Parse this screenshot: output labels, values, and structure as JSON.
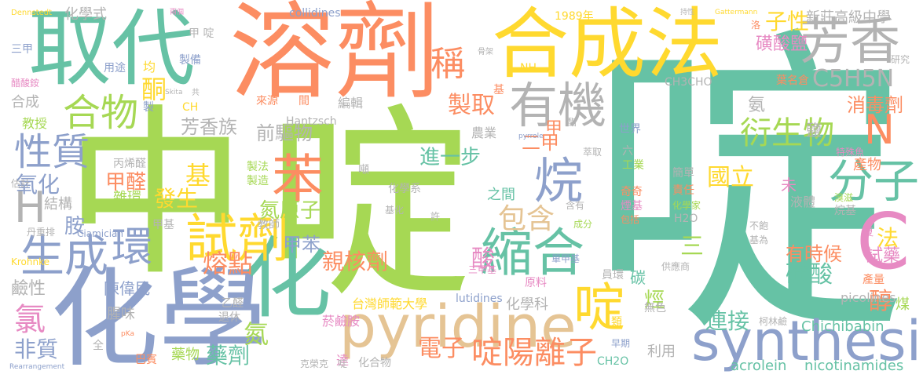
{
  "words": [
    {
      "text": "啶",
      "color": "teal"
    },
    {
      "text": "中",
      "color": "green"
    },
    {
      "text": "啶",
      "color": "green"
    },
    {
      "text": "溶劑",
      "color": "orange"
    },
    {
      "text": "化學",
      "color": "blue"
    },
    {
      "text": "合成法",
      "color": "yellow"
    },
    {
      "text": "取代",
      "color": "teal"
    },
    {
      "text": "化",
      "color": "teal"
    },
    {
      "text": "pyridine",
      "color": "tan"
    },
    {
      "text": "synthesis",
      "color": "blue"
    },
    {
      "text": "芳香",
      "color": "grey"
    },
    {
      "text": "C",
      "color": "pink"
    },
    {
      "text": "試劑",
      "color": "yellow"
    },
    {
      "text": "縮合",
      "color": "teal"
    },
    {
      "text": "有機",
      "color": "grey"
    },
    {
      "text": "合物",
      "color": "green"
    },
    {
      "text": "苯",
      "color": "orange"
    },
    {
      "text": "分子",
      "color": "teal"
    },
    {
      "text": "烷",
      "color": "blue"
    },
    {
      "text": "環",
      "color": "blue"
    },
    {
      "text": "生成",
      "color": "blue"
    },
    {
      "text": "H",
      "color": "grey"
    },
    {
      "text": "N",
      "color": "orange"
    },
    {
      "text": "啶",
      "color": "yellow"
    },
    {
      "text": "性質",
      "color": "blue"
    },
    {
      "text": "衍生物",
      "color": "green"
    },
    {
      "text": "啶陽離子",
      "color": "orange"
    },
    {
      "text": "氯",
      "color": "pink"
    },
    {
      "text": "包含",
      "color": "tan"
    },
    {
      "text": "稱",
      "color": "orange"
    },
    {
      "text": "製取",
      "color": "orange"
    },
    {
      "text": "C5H5N",
      "color": "grey"
    },
    {
      "text": "親核劑",
      "color": "orange"
    },
    {
      "text": "氮原子",
      "color": "green"
    },
    {
      "text": "國立",
      "color": "yellow"
    },
    {
      "text": "磺酸",
      "color": "teal"
    },
    {
      "text": "基",
      "color": "yellow"
    },
    {
      "text": "甲醛",
      "color": "orange"
    },
    {
      "text": "進一步",
      "color": "teal"
    },
    {
      "text": "電子",
      "color": "orange"
    },
    {
      "text": "熔點",
      "color": "orange"
    },
    {
      "text": "氮",
      "color": "green"
    },
    {
      "text": "藥劑",
      "color": "teal"
    },
    {
      "text": "連接",
      "color": "teal"
    },
    {
      "text": "子性",
      "color": "yellow"
    },
    {
      "text": "消毒劑",
      "color": "orange"
    },
    {
      "text": "有時候",
      "color": "orange"
    },
    {
      "text": "醇",
      "color": "orange"
    },
    {
      "text": "磺酸鹽",
      "color": "pink"
    },
    {
      "text": "芳香族",
      "color": "grey"
    },
    {
      "text": "前驅物",
      "color": "grey"
    },
    {
      "text": "氧化",
      "color": "blue"
    },
    {
      "text": "發生",
      "color": "yellow"
    },
    {
      "text": "甲苯",
      "color": "blue"
    },
    {
      "text": "法",
      "color": "yellow"
    },
    {
      "text": "試藥",
      "color": "pink"
    },
    {
      "text": "酸",
      "color": "pink"
    },
    {
      "text": "三",
      "color": "green"
    },
    {
      "text": "酮",
      "color": "yellow"
    },
    {
      "text": "新莊高級中學",
      "color": "grey"
    },
    {
      "text": "非質",
      "color": "blue"
    },
    {
      "text": "鹼性",
      "color": "grey"
    },
    {
      "text": "胺",
      "color": "blue"
    },
    {
      "text": "結構",
      "color": "grey"
    },
    {
      "text": "雜環",
      "color": "green"
    },
    {
      "text": "陳偉民",
      "color": "blue"
    },
    {
      "text": "台灣師範大學",
      "color": "yellow"
    },
    {
      "text": "化學科",
      "color": "grey"
    },
    {
      "text": "Chichibabin",
      "color": "teal"
    },
    {
      "text": "acrolein",
      "color": "teal"
    },
    {
      "text": "nicotinamides",
      "color": "teal"
    },
    {
      "text": "picolines",
      "color": "grey"
    },
    {
      "text": "lutidines",
      "color": "blue"
    },
    {
      "text": "collidines",
      "color": "blue"
    },
    {
      "text": "Hantzsch",
      "color": "grey"
    },
    {
      "text": "Ciamician",
      "color": "blue"
    },
    {
      "text": "Krohnke",
      "color": "yellow"
    },
    {
      "text": "CH3CHO",
      "color": "grey"
    },
    {
      "text": "CH2O",
      "color": "teal"
    },
    {
      "text": "H2O",
      "color": "grey"
    },
    {
      "text": "NH",
      "color": "yellow"
    },
    {
      "text": "1989年",
      "color": "yellow"
    },
    {
      "text": "化學式",
      "color": "grey"
    },
    {
      "text": "甲 啶",
      "color": "grey"
    },
    {
      "text": "製備",
      "color": "blue"
    },
    {
      "text": "用途",
      "color": "blue"
    },
    {
      "text": "教授",
      "color": "green"
    },
    {
      "text": "合成",
      "color": "grey"
    },
    {
      "text": "估計",
      "color": "grey"
    },
    {
      "text": "三甲",
      "color": "blue"
    },
    {
      "text": "醋酸銨",
      "color": "pink"
    },
    {
      "text": "丹重排",
      "color": "grey"
    },
    {
      "text": "甲基",
      "color": "grey"
    },
    {
      "text": "乙醛",
      "color": "grey"
    },
    {
      "text": "退休",
      "color": "grey"
    },
    {
      "text": "腥味",
      "color": "grey"
    },
    {
      "text": "巴賓",
      "color": "orange"
    },
    {
      "text": "藥物",
      "color": "green"
    },
    {
      "text": "化合物",
      "color": "grey"
    },
    {
      "text": "丙烯醛",
      "color": "grey"
    },
    {
      "text": "製法",
      "color": "green"
    },
    {
      "text": "製造",
      "color": "green"
    },
    {
      "text": "化學系",
      "color": "grey"
    },
    {
      "text": "之間",
      "color": "teal"
    },
    {
      "text": "教師",
      "color": "grey"
    },
    {
      "text": "共",
      "color": "grey"
    },
    {
      "text": "來源",
      "color": "orange"
    },
    {
      "text": "編輯",
      "color": "grey"
    },
    {
      "text": "農業",
      "color": "grey"
    },
    {
      "text": "原料",
      "color": "pink"
    },
    {
      "text": "成分",
      "color": "green"
    },
    {
      "text": "含有",
      "color": "grey"
    },
    {
      "text": "萃取",
      "color": "grey"
    },
    {
      "text": "世界",
      "color": "blue"
    },
    {
      "text": "六",
      "color": "grey"
    },
    {
      "text": "工業",
      "color": "green"
    },
    {
      "text": "奇奇",
      "color": "orange"
    },
    {
      "text": "煙基",
      "color": "pink"
    },
    {
      "text": "包括",
      "color": "orange"
    },
    {
      "text": "簡單",
      "color": "grey"
    },
    {
      "text": "責任",
      "color": "orange"
    },
    {
      "text": "化學家",
      "color": "green"
    },
    {
      "text": "產物",
      "color": "orange"
    },
    {
      "text": "液體",
      "color": "grey"
    },
    {
      "text": "未",
      "color": "pink"
    },
    {
      "text": "不飽",
      "color": "grey"
    },
    {
      "text": "基為",
      "color": "grey"
    },
    {
      "text": "烷基",
      "color": "grey"
    },
    {
      "text": "溴滋",
      "color": "green"
    },
    {
      "text": "供應商",
      "color": "grey"
    },
    {
      "text": "員環",
      "color": "grey"
    },
    {
      "text": "碳",
      "color": "teal"
    },
    {
      "text": "烴",
      "color": "green"
    },
    {
      "text": "無色",
      "color": "grey"
    },
    {
      "text": "利用",
      "color": "grey"
    },
    {
      "text": "柯林鹼",
      "color": "grey"
    },
    {
      "text": "早期",
      "color": "blue"
    },
    {
      "text": "類",
      "color": "yellow"
    },
    {
      "text": "產量",
      "color": "orange"
    },
    {
      "text": "煤",
      "color": "green"
    },
    {
      "text": "特殊魚",
      "color": "pink"
    },
    {
      "text": "葉名倉",
      "color": "orange"
    },
    {
      "text": "氨",
      "color": "grey"
    },
    {
      "text": "鹽",
      "color": "grey"
    },
    {
      "text": "研究",
      "color": "grey"
    },
    {
      "text": "均",
      "color": "yellow"
    },
    {
      "text": "甲",
      "color": "orange"
    },
    {
      "text": "二甲",
      "color": "orange"
    },
    {
      "text": "達",
      "color": "pink"
    },
    {
      "text": "菸鹼胺",
      "color": "pink"
    },
    {
      "text": "三甲基",
      "color": "pink"
    },
    {
      "text": "單甲基",
      "color": "blue"
    },
    {
      "text": "克榮克",
      "color": "grey"
    },
    {
      "text": "啶",
      "color": "grey"
    },
    {
      "text": "全",
      "color": "grey"
    },
    {
      "text": "Dennstedt",
      "color": "yellow"
    },
    {
      "text": "Gattermann",
      "color": "yellow"
    },
    {
      "text": "Rearrangement",
      "color": "blue"
    },
    {
      "text": "Skita",
      "color": "grey"
    },
    {
      "text": "pyrrole",
      "color": "blue"
    },
    {
      "text": "pKa",
      "color": "orange"
    },
    {
      "text": "兩個",
      "color": "pink"
    },
    {
      "text": "持性",
      "color": "grey"
    },
    {
      "text": "間",
      "color": "orange"
    },
    {
      "text": "骨架",
      "color": "grey"
    },
    {
      "text": "酯",
      "color": "grey"
    },
    {
      "text": "基",
      "color": "orange"
    },
    {
      "text": "CH",
      "color": "yellow"
    },
    {
      "text": "製",
      "color": "blue"
    },
    {
      "text": "噸",
      "color": "grey"
    },
    {
      "text": "許",
      "color": "grey"
    },
    {
      "text": "基化",
      "color": "grey"
    },
    {
      "text": "夏",
      "color": "pink"
    },
    {
      "text": "洛",
      "color": "orange"
    }
  ]
}
